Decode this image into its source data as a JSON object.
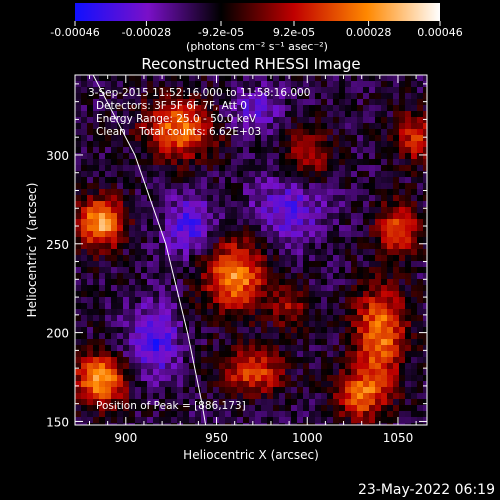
{
  "chart_data": {
    "type": "heatmap",
    "title": "Reconstructed RHESSI Image",
    "xlabel": "Heliocentric X (arcsec)",
    "ylabel": "Heliocentric Y (arcsec)",
    "xlim": [
      872,
      1066
    ],
    "ylim": [
      148,
      345
    ],
    "x_ticks": [
      900,
      950,
      1000,
      1050
    ],
    "y_ticks": [
      150,
      200,
      250,
      300
    ],
    "colorbar": {
      "ticks": [
        -0.00046,
        -0.00028,
        -9.2e-05,
        9.2e-05,
        0.00028,
        0.00046
      ],
      "tick_labels": [
        "-0.00046",
        "-0.00028",
        "-9.2e-05",
        "9.2e-05",
        "0.00028",
        "0.00046"
      ],
      "range": [
        -0.00046,
        0.00046
      ],
      "colors": [
        "#1010ff",
        "#7a10c8",
        "#000000",
        "#c00000",
        "#ff8800",
        "#ffffff"
      ]
    },
    "units_label": "(photons cm⁻² s⁻¹ asec⁻²)",
    "annotations": {
      "time": "3-Sep-2015 11:52:16.000 to 11:58:16.000",
      "detectors": "Detectors: 3F 5F 6F 7F, Att 0",
      "energy": "Energy Range: 25.0 - 50.0 keV",
      "clean": "Clean    Total counts: 6.62E+03",
      "peak": "Position of Peak = [886,173]"
    },
    "peak_position": [
      886,
      173
    ],
    "limb_points": [
      [
        882,
        345
      ],
      [
        905,
        300
      ],
      [
        922,
        250
      ],
      [
        934,
        200
      ],
      [
        942,
        160
      ],
      [
        944,
        148
      ]
    ],
    "sources": [
      {
        "x": 886,
        "y": 262,
        "amp": 0.00046,
        "sx": 9,
        "sy": 10
      },
      {
        "x": 886,
        "y": 173,
        "amp": 0.00046,
        "sx": 10,
        "sy": 10
      },
      {
        "x": 960,
        "y": 232,
        "amp": 0.00042,
        "sx": 12,
        "sy": 14
      },
      {
        "x": 930,
        "y": 315,
        "amp": 0.00038,
        "sx": 14,
        "sy": 12
      },
      {
        "x": 1040,
        "y": 200,
        "amp": 0.0004,
        "sx": 10,
        "sy": 18
      },
      {
        "x": 1050,
        "y": 258,
        "amp": 0.00035,
        "sx": 8,
        "sy": 10
      },
      {
        "x": 1030,
        "y": 165,
        "amp": 0.00034,
        "sx": 10,
        "sy": 10
      },
      {
        "x": 970,
        "y": 178,
        "amp": 0.00032,
        "sx": 12,
        "sy": 9
      },
      {
        "x": 1000,
        "y": 300,
        "amp": 0.00022,
        "sx": 10,
        "sy": 12
      },
      {
        "x": 1060,
        "y": 310,
        "amp": 0.00028,
        "sx": 8,
        "sy": 10
      },
      {
        "x": 990,
        "y": 215,
        "amp": 0.0002,
        "sx": 7,
        "sy": 9
      },
      {
        "x": 915,
        "y": 195,
        "amp": -0.00025,
        "sx": 10,
        "sy": 14
      },
      {
        "x": 990,
        "y": 270,
        "amp": -0.0002,
        "sx": 14,
        "sy": 14
      },
      {
        "x": 935,
        "y": 260,
        "amp": -0.00022,
        "sx": 10,
        "sy": 12
      },
      {
        "x": 970,
        "y": 325,
        "amp": -0.00015,
        "sx": 12,
        "sy": 10
      }
    ]
  },
  "footer": {
    "date": "23-May-2022 06:19"
  }
}
